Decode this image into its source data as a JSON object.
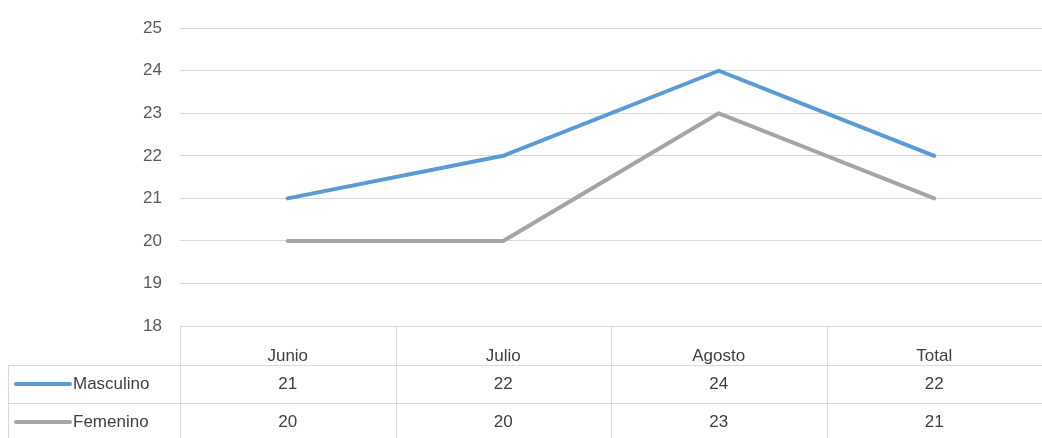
{
  "chart_data": {
    "type": "line",
    "categories": [
      "Junio",
      "Julio",
      "Agosto",
      "Total"
    ],
    "series": [
      {
        "name": "Masculino",
        "color": "#5b9bd5",
        "values": [
          21,
          22,
          24,
          22
        ]
      },
      {
        "name": "Femenino",
        "color": "#a5a5a5",
        "values": [
          20,
          20,
          23,
          21
        ]
      }
    ],
    "ylim": [
      18,
      25
    ],
    "yticks": [
      18,
      19,
      20,
      21,
      22,
      23,
      24,
      25
    ],
    "grid": "y",
    "marker": "none",
    "line_style": "solid",
    "legend": "bottom",
    "data_labels": true
  }
}
